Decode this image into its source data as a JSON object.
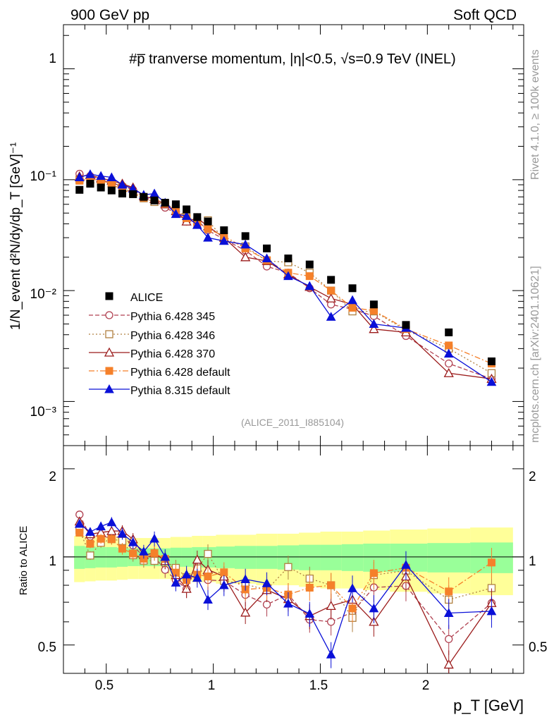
{
  "header": {
    "left": "900 GeV pp",
    "right": "Soft QCD"
  },
  "side_labels": {
    "rivet": "Rivet 4.1.0, ≥ 100k events",
    "mcplots": "mcplots.cern.ch [arXiv:2401.10621]"
  },
  "main_panel": {
    "title": "#p̅ tranverse momentum, |η|<0.5, √s=0.9 TeV (INEL)",
    "ylabel": "1/N_event d²N/dy/dp_T [GeV]⁻¹",
    "analysis_tag": "(ALICE_2011_I885104)",
    "y_ticks": [
      "1",
      "10⁻¹",
      "10⁻²",
      "10⁻³"
    ],
    "y_scale": "log",
    "ylim": [
      0.0004,
      2.5
    ]
  },
  "ratio_panel": {
    "ylabel": "Ratio to ALICE",
    "y_ticks": [
      "0.5",
      "1",
      "2"
    ],
    "ylim": [
      0.4,
      2.4
    ],
    "y_scale": "log"
  },
  "x_axis": {
    "label": "p_T [GeV]",
    "ticks": [
      "0.5",
      "1",
      "1.5",
      "2"
    ],
    "xlim": [
      0.3,
      2.45
    ]
  },
  "legend": {
    "items": [
      {
        "label": "ALICE",
        "key": "alice"
      },
      {
        "label": "Pythia 6.428 345",
        "key": "p345"
      },
      {
        "label": "Pythia 6.428 346",
        "key": "p346"
      },
      {
        "label": "Pythia 6.428 370",
        "key": "p370"
      },
      {
        "label": "Pythia 6.428 default",
        "key": "p6def"
      },
      {
        "label": "Pythia 8.315 default",
        "key": "p8def"
      }
    ]
  },
  "colors": {
    "alice": "#000000",
    "p345": "#b04050",
    "p346": "#b08040",
    "p370": "#9b1b1b",
    "p6def": "#f5802a",
    "p8def": "#0a10d8",
    "band_yellow": "#ffff99",
    "band_green": "#99ff99"
  },
  "chart_data": {
    "type": "scatter",
    "title": "#p̅ tranverse momentum, |η|<0.5, √s=0.9 TeV (INEL)",
    "xlabel": "p_T [GeV]",
    "ylabel": "1/N_event d²N/dy/dp_T [GeV]⁻¹",
    "x": [
      0.375,
      0.425,
      0.475,
      0.525,
      0.575,
      0.625,
      0.675,
      0.725,
      0.775,
      0.825,
      0.875,
      0.925,
      0.975,
      1.05,
      1.15,
      1.25,
      1.35,
      1.45,
      1.55,
      1.65,
      1.75,
      1.9,
      2.1,
      2.3
    ],
    "alice": {
      "name": "ALICE",
      "values": [
        0.081,
        0.092,
        0.085,
        0.08,
        0.075,
        0.074,
        0.07,
        0.065,
        0.062,
        0.06,
        0.054,
        0.046,
        0.042,
        0.035,
        0.031,
        0.024,
        0.0195,
        0.0172,
        0.0125,
        0.0105,
        0.0075,
        0.0049,
        0.0042,
        0.0023
      ],
      "band_yellow": [
        0.18,
        0.175,
        0.17,
        0.17,
        0.165,
        0.16,
        0.16,
        0.16,
        0.16,
        0.17,
        0.17,
        0.18,
        0.18,
        0.19,
        0.19,
        0.2,
        0.2,
        0.21,
        0.22,
        0.22,
        0.23,
        0.24,
        0.25,
        0.26
      ],
      "band_green": [
        0.09,
        0.085,
        0.08,
        0.08,
        0.075,
        0.07,
        0.07,
        0.07,
        0.07,
        0.075,
        0.075,
        0.08,
        0.08,
        0.085,
        0.09,
        0.09,
        0.095,
        0.1,
        0.1,
        0.105,
        0.11,
        0.11,
        0.115,
        0.12
      ]
    },
    "series": [
      {
        "name": "Pythia 6.428 345",
        "key": "p345",
        "marker": "circle-open",
        "dash": "6,3",
        "values": [
          0.113,
          0.108,
          0.1,
          0.093,
          0.088,
          0.081,
          0.07,
          0.065,
          0.056,
          0.05,
          0.042,
          0.043,
          0.035,
          0.029,
          0.023,
          0.0165,
          0.0145,
          0.0105,
          0.0075,
          0.0068,
          0.0059,
          0.0039,
          0.0022,
          0.0016
        ]
      },
      {
        "name": "Pythia 6.428 346",
        "key": "p346",
        "marker": "square-open",
        "dash": "2,3",
        "values": [
          0.1,
          0.093,
          0.095,
          0.092,
          0.085,
          0.075,
          0.068,
          0.063,
          0.06,
          0.055,
          0.046,
          0.042,
          0.043,
          0.029,
          0.025,
          0.0185,
          0.018,
          0.0145,
          0.01,
          0.0065,
          0.0065,
          0.0044,
          0.003,
          0.0018
        ]
      },
      {
        "name": "Pythia 6.428 370",
        "key": "p370",
        "marker": "triangle-open",
        "dash": "",
        "values": [
          0.107,
          0.11,
          0.103,
          0.098,
          0.092,
          0.085,
          0.071,
          0.067,
          0.06,
          0.052,
          0.042,
          0.045,
          0.038,
          0.03,
          0.02,
          0.0185,
          0.014,
          0.0108,
          0.0085,
          0.0075,
          0.0045,
          0.0042,
          0.0018,
          0.0016
        ]
      },
      {
        "name": "Pythia 6.428 default",
        "key": "p6def",
        "marker": "square-filled",
        "dash": "8,3,2,3",
        "values": [
          0.098,
          0.102,
          0.098,
          0.092,
          0.08,
          0.076,
          0.069,
          0.067,
          0.061,
          0.053,
          0.045,
          0.04,
          0.036,
          0.031,
          0.024,
          0.0188,
          0.0145,
          0.0135,
          0.01,
          0.007,
          0.0066,
          0.0045,
          0.0032,
          0.0022
        ]
      },
      {
        "name": "Pythia 8.315 default",
        "key": "p8def",
        "marker": "triangle-filled",
        "dash": "",
        "values": [
          0.105,
          0.112,
          0.108,
          0.105,
          0.09,
          0.083,
          0.073,
          0.075,
          0.062,
          0.049,
          0.047,
          0.039,
          0.03,
          0.028,
          0.026,
          0.0195,
          0.0135,
          0.011,
          0.0058,
          0.0082,
          0.005,
          0.0046,
          0.0027,
          0.0015
        ]
      }
    ]
  }
}
